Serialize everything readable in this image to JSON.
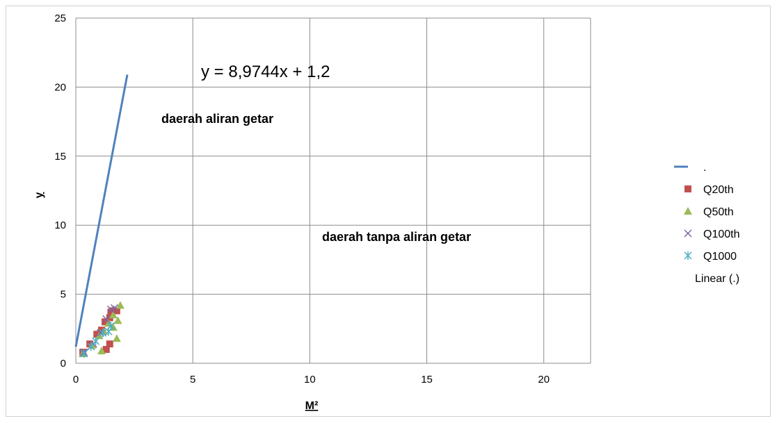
{
  "chart_data": {
    "type": "scatter",
    "xlabel": "M²",
    "ylabel": "y",
    "xlim": [
      0,
      22
    ],
    "ylim": [
      0,
      25
    ],
    "xticks": [
      "0",
      "5",
      "10",
      "15",
      "20"
    ],
    "yticks": [
      "0",
      "5",
      "10",
      "15",
      "20",
      "25"
    ],
    "grid": true,
    "legend_position": "right",
    "annotations": {
      "equation": "y = 8,9744x + 1,2",
      "region_upper": "daerah aliran getar",
      "region_lower": "daerah tanpa aliran getar"
    },
    "series": [
      {
        "name": ".",
        "kind": "line",
        "color": "#4F81BD",
        "x": [
          0,
          2.2
        ],
        "y": [
          1.2,
          20.9
        ]
      },
      {
        "name": "Q20th",
        "kind": "square",
        "color": "#C0504D",
        "x": [
          0.3,
          0.6,
          0.9,
          1.1,
          1.25,
          1.45,
          1.5,
          1.6,
          1.75,
          1.3,
          1.45
        ],
        "y": [
          0.8,
          1.4,
          2.1,
          2.4,
          3.0,
          3.3,
          3.7,
          3.8,
          3.8,
          1.0,
          1.4
        ]
      },
      {
        "name": "Q50th",
        "kind": "triangle",
        "color": "#9BBB59",
        "x": [
          0.3,
          0.7,
          1.0,
          1.2,
          1.4,
          1.6,
          1.8,
          1.9,
          1.1,
          1.6,
          1.75
        ],
        "y": [
          0.7,
          1.3,
          2.0,
          2.3,
          2.9,
          3.5,
          3.1,
          4.2,
          0.9,
          2.6,
          1.8
        ]
      },
      {
        "name": "Q100th",
        "kind": "x",
        "color": "#8064A2",
        "x": [
          0.35,
          0.75,
          1.05,
          1.3,
          1.5,
          1.65
        ],
        "y": [
          0.8,
          1.4,
          2.2,
          3.2,
          3.9,
          4.0
        ]
      },
      {
        "name": "Q1000",
        "kind": "star",
        "color": "#4BACC6",
        "x": [
          0.35,
          0.65,
          0.85,
          1.15,
          1.4,
          1.5
        ],
        "y": [
          0.7,
          1.2,
          1.6,
          2.2,
          2.3,
          2.7
        ]
      },
      {
        "name": "Linear (.)",
        "kind": "trendline",
        "color": "#4F81BD",
        "x": [],
        "y": []
      }
    ]
  }
}
